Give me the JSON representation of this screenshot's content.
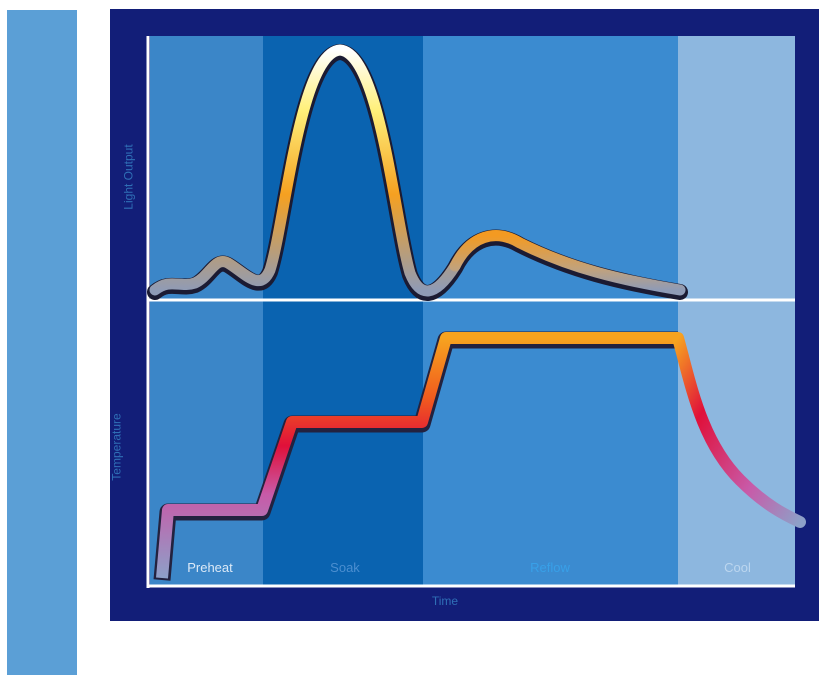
{
  "diagram": {
    "top_axis_label": "Light Output",
    "bottom_axis_label": "Temperature",
    "x_axis_label": "Time",
    "phases": {
      "preheat": "Preheat",
      "soak": "Soak",
      "reflow": "Reflow",
      "cool": "Cool"
    }
  },
  "colors": {
    "frame": "#121e78",
    "zone_preheat": "#3b86c8",
    "zone_soak": "#0a63b0",
    "zone_reflow": "#3b8bd0",
    "zone_cool": "#8db7df"
  }
}
